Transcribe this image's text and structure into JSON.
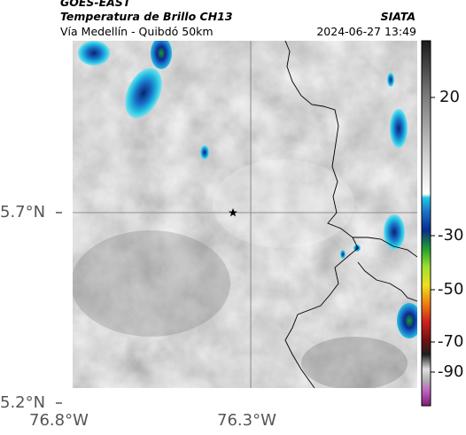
{
  "header": {
    "satellite": "GOES-EAST",
    "product": "Temperatura de Brillo CH13",
    "route": "Vía Medellín - Quibdó 50km",
    "agency": "SIATA",
    "timestamp": "2024-06-27 13:49"
  },
  "map": {
    "lat_ticks": [
      "5.7°N",
      "5.2°N"
    ],
    "lon_ticks": [
      "76.8°W",
      "76.3°W"
    ],
    "marker": "star"
  },
  "colorbar": {
    "labels": [
      "20",
      "-30",
      "-50",
      "-70",
      "-90"
    ],
    "colors": {
      "cyan": "#1ec8e6",
      "blue": "#0a2a8c",
      "green": "#1a9a2a",
      "yellow": "#e8e81a",
      "orange": "#e87a10",
      "red": "#c81e1e",
      "magenta": "#b03ab0"
    }
  }
}
